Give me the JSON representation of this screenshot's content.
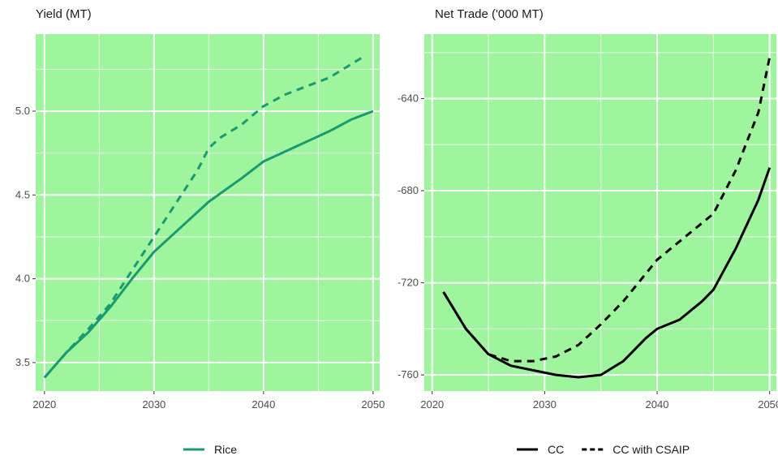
{
  "chart_data": [
    {
      "type": "line",
      "title": "Yield (MT)",
      "xlabel": "",
      "ylabel": "",
      "xlim": [
        2019.2,
        2050.6
      ],
      "ylim": [
        3.33,
        5.46
      ],
      "x_ticks": [
        "2020",
        "2030",
        "2040",
        "2050"
      ],
      "y_ticks": [
        "3.5",
        "4.0",
        "4.5",
        "5.0"
      ],
      "grid": true,
      "legend_position": "bottom",
      "legend": [
        {
          "label": "Rice",
          "color": "#1a9a70",
          "linestyle": "solid"
        }
      ],
      "series": [
        {
          "name": "Rice",
          "linestyle": "solid",
          "color": "#1a9a70",
          "x": [
            2020,
            2022,
            2024,
            2026,
            2028,
            2030,
            2032,
            2035,
            2038,
            2040,
            2043,
            2046,
            2048,
            2050
          ],
          "y": [
            3.41,
            3.56,
            3.68,
            3.83,
            4.0,
            4.16,
            4.28,
            4.46,
            4.6,
            4.7,
            4.79,
            4.88,
            4.95,
            5.0
          ]
        },
        {
          "name": "",
          "linestyle": "dashed",
          "color": "#1a9a70",
          "x": [
            2020,
            2022,
            2024,
            2026,
            2028,
            2030,
            2032,
            2034,
            2035,
            2036,
            2038,
            2040,
            2042,
            2044,
            2046,
            2049
          ],
          "y": [
            3.41,
            3.56,
            3.7,
            3.85,
            4.05,
            4.25,
            4.45,
            4.65,
            4.78,
            4.84,
            4.92,
            5.03,
            5.1,
            5.15,
            5.2,
            5.32
          ]
        }
      ]
    },
    {
      "type": "line",
      "title": "Net Trade ('000 MT)",
      "xlabel": "",
      "ylabel": "",
      "xlim": [
        2019.3,
        2050.6
      ],
      "ylim": [
        -767,
        -612
      ],
      "x_ticks": [
        "2020",
        "2030",
        "2040",
        "2050"
      ],
      "y_ticks": [
        "-640",
        "-680",
        "-720",
        "-760"
      ],
      "grid": true,
      "legend_position": "bottom",
      "legend": [
        {
          "label": "CC",
          "color": "#000000",
          "linestyle": "solid"
        },
        {
          "label": "CC with CSAIP",
          "color": "#000000",
          "linestyle": "dashed"
        }
      ],
      "series": [
        {
          "name": "CC",
          "linestyle": "solid",
          "color": "#000000",
          "x": [
            2021,
            2023,
            2025,
            2027,
            2029,
            2031,
            2033,
            2035,
            2037,
            2039,
            2040,
            2042,
            2044,
            2045,
            2047,
            2049,
            2050
          ],
          "y": [
            -724,
            -740,
            -751,
            -756,
            -758,
            -760,
            -761,
            -760,
            -754,
            -744,
            -740,
            -736,
            -728,
            -723,
            -705,
            -684,
            -670
          ]
        },
        {
          "name": "CC with CSAIP",
          "linestyle": "dashed",
          "color": "#000000",
          "x": [
            2021,
            2023,
            2025,
            2027,
            2029,
            2031,
            2033,
            2035,
            2037,
            2039,
            2040,
            2042,
            2044,
            2045,
            2047,
            2049,
            2050
          ],
          "y": [
            -724,
            -740,
            -751,
            -754,
            -754,
            -752,
            -747,
            -738,
            -728,
            -716,
            -710,
            -702,
            -694,
            -690,
            -671,
            -646,
            -622
          ]
        }
      ]
    }
  ]
}
